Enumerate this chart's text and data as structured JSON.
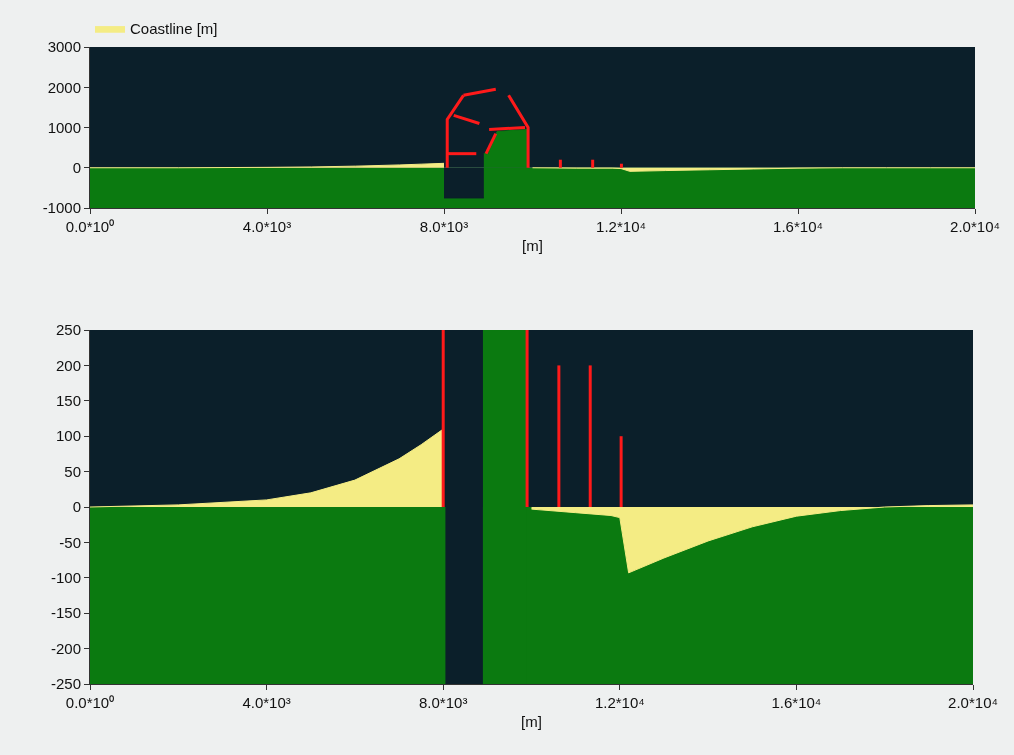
{
  "chart_data": [
    {
      "type": "area",
      "xlabel": "[m]",
      "xlim": [
        0,
        20000
      ],
      "xticks": [
        {
          "value": 0,
          "label": "0.0*10⁰"
        },
        {
          "value": 4000,
          "label": "4.0*10³"
        },
        {
          "value": 8000,
          "label": "8.0*10³"
        },
        {
          "value": 12000,
          "label": "1.2*10⁴"
        },
        {
          "value": 16000,
          "label": "1.6*10⁴"
        },
        {
          "value": 20000,
          "label": "2.0*10⁴"
        }
      ],
      "ylim": [
        -1000,
        3000
      ],
      "yticks": [
        -1000,
        0,
        1000,
        2000,
        3000
      ],
      "grid": false,
      "legend": "top left",
      "marker": "none",
      "bands": [
        {
          "axis": "y",
          "from": 0,
          "to": 3000,
          "color": "#0b1f2a"
        },
        {
          "axis": "y",
          "from": -1000,
          "to": 0,
          "color": "#0b7a10"
        }
      ],
      "series": [
        {
          "color": "#0b1f2a",
          "x": [
            8000,
            8900
          ],
          "values": [
            -750,
            -750
          ]
        },
        {
          "color": "#0b7a10",
          "x": [
            8900,
            9000,
            9200,
            9900
          ],
          "values": [
            350,
            350,
            900,
            950
          ]
        },
        {
          "name": "Coastline [m]",
          "color": "#f4ec84",
          "x": [
            0,
            2000,
            4000,
            5000,
            6000,
            7000,
            7500,
            8000,
            8050,
            10000,
            11000,
            11800,
            12000,
            12200,
            13000,
            14000,
            15000,
            16000,
            17000,
            18000,
            19000,
            20000
          ],
          "values": [
            0,
            0,
            10,
            20,
            40,
            70,
            90,
            110,
            null,
            0,
            -10,
            -10,
            -20,
            -90,
            -70,
            -50,
            -30,
            -10,
            0,
            0,
            0,
            0
          ]
        },
        {
          "type": "line",
          "color": "#ff1a1a",
          "x": [
            8073,
            8073,
            8440,
            null,
            8440,
            9170,
            null,
            9460,
            9900,
            9900,
            null,
            8073,
            8730,
            null,
            8220,
            8800,
            null,
            8950,
            9170,
            null,
            9020,
            9830,
            null,
            10630,
            10630,
            null,
            11360,
            11360,
            null,
            12010,
            12010
          ],
          "values": [
            0,
            1200,
            1800,
            null,
            1800,
            1950,
            null,
            1800,
            1000,
            0,
            null,
            350,
            350,
            null,
            1300,
            1100,
            null,
            350,
            850,
            null,
            950,
            1000,
            null,
            0,
            200,
            null,
            0,
            200,
            null,
            0,
            100
          ]
        }
      ]
    },
    {
      "type": "area",
      "xlabel": "[m]",
      "xlim": [
        0,
        20000
      ],
      "xticks": [
        {
          "value": 0,
          "label": "0.0*10⁰"
        },
        {
          "value": 4000,
          "label": "4.0*10³"
        },
        {
          "value": 8000,
          "label": "8.0*10³"
        },
        {
          "value": 12000,
          "label": "1.2*10⁴"
        },
        {
          "value": 16000,
          "label": "1.6*10⁴"
        },
        {
          "value": 20000,
          "label": "2.0*10⁴"
        }
      ],
      "ylim": [
        -250,
        250
      ],
      "yticks": [
        -250,
        -200,
        -150,
        -100,
        -50,
        0,
        50,
        100,
        150,
        200,
        250
      ],
      "grid": false,
      "marker": "none",
      "bands": [
        {
          "axis": "y",
          "from": 0,
          "to": 250,
          "color": "#0b1f2a"
        },
        {
          "axis": "y",
          "from": -250,
          "to": 0,
          "color": "#0b7a10"
        },
        {
          "axis": "x",
          "from": 8050,
          "to": 8900,
          "color": "#0b1f2a"
        },
        {
          "axis": "x",
          "from": 8900,
          "to": 9880,
          "color": "#0b7a10"
        }
      ],
      "series": [
        {
          "color": "#f4ec84",
          "x": [
            0,
            2000,
            4000,
            5000,
            6000,
            7000,
            7500,
            8000,
            8050,
            10000,
            11000,
            11800,
            12000,
            12200,
            13000,
            14000,
            15000,
            16000,
            17000,
            18000,
            19000,
            20000
          ],
          "values": [
            0,
            3,
            10,
            20,
            38,
            68,
            88,
            110,
            null,
            -3,
            -8,
            -12,
            -15,
            -93,
            -72,
            -48,
            -28,
            -13,
            -5,
            0,
            2,
            3
          ]
        },
        {
          "type": "line",
          "color": "#ff1a1a",
          "x": [
            8000,
            8000,
            null,
            9900,
            9900,
            null,
            10620,
            10620,
            null,
            11330,
            11330,
            null,
            12030,
            12030
          ],
          "values": [
            0,
            250,
            null,
            0,
            250,
            null,
            0,
            200,
            null,
            0,
            200,
            null,
            0,
            100
          ]
        }
      ]
    }
  ]
}
